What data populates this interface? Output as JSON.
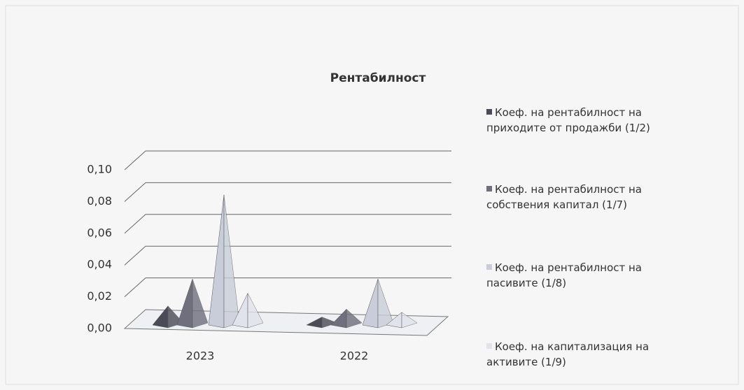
{
  "chart_data": {
    "type": "pyramid3d",
    "title": "Рентабилност",
    "categories": [
      "2023",
      "2022"
    ],
    "series": [
      {
        "name": "Коеф. на рентабилност на приходите от продажби (1/2)",
        "color": "#4b4b57",
        "values": [
          0.012,
          0.005
        ]
      },
      {
        "name": "Коеф. на рентабилност на собствения капитал (1/7)",
        "color": "#6f6f7e",
        "values": [
          0.029,
          0.01
        ]
      },
      {
        "name": "Коеф. на рентабилност на пасивите (1/8)",
        "color": "#c9cdd9",
        "values": [
          0.082,
          0.029
        ]
      },
      {
        "name": "Коеф. на капитализация на активите (1/9)",
        "color": "#e0e3eb",
        "values": [
          0.02,
          0.008
        ]
      }
    ],
    "ylim": [
      0,
      0.1
    ],
    "yticks": [
      {
        "value": 0,
        "label": "0,00"
      },
      {
        "value": 0.02,
        "label": "0,02"
      },
      {
        "value": 0.04,
        "label": "0,04"
      },
      {
        "value": 0.06,
        "label": "0,06"
      },
      {
        "value": 0.08,
        "label": "0,08"
      },
      {
        "value": 0.1,
        "label": "0,10"
      }
    ],
    "grid": true,
    "legend": "right"
  }
}
